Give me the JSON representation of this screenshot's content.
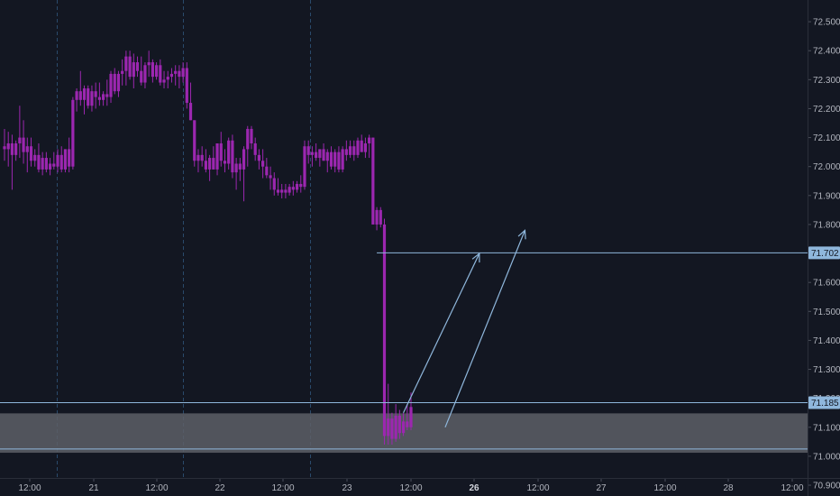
{
  "chart_data": {
    "type": "candlestick",
    "colors": {
      "background": "#131722",
      "candle": "#9c27b0",
      "drawing": "#8fb7dc",
      "zone_fill": "#5d5f66",
      "axis_text": "#b2b5be",
      "grid_vertical": "#2a4a6b"
    },
    "y_axis": {
      "position": "right",
      "ylim": [
        70.925,
        72.575
      ],
      "ticks": [
        "72.500",
        "72.400",
        "72.300",
        "72.200",
        "72.100",
        "72.000",
        "71.900",
        "71.800",
        "71.700",
        "71.600",
        "71.500",
        "71.400",
        "71.300",
        "71.200",
        "71.100",
        "71.000",
        "70.900"
      ]
    },
    "x_axis": {
      "ticks": [
        {
          "label": "12:00",
          "bold": false
        },
        {
          "label": "21",
          "bold": false
        },
        {
          "label": "12:00",
          "bold": false
        },
        {
          "label": "22",
          "bold": false
        },
        {
          "label": "12:00",
          "bold": false
        },
        {
          "label": "23",
          "bold": false
        },
        {
          "label": "12:00",
          "bold": false
        },
        {
          "label": "26",
          "bold": true
        },
        {
          "label": "12:00",
          "bold": false
        },
        {
          "label": "27",
          "bold": false
        },
        {
          "label": "12:00",
          "bold": false
        },
        {
          "label": "28",
          "bold": false
        },
        {
          "label": "12:00",
          "bold": false
        }
      ],
      "day_separators": 3
    },
    "price_labels": [
      {
        "text": "71.702",
        "value": 71.702
      },
      {
        "text": "71.185",
        "value": 71.185
      }
    ],
    "horizontal_levels": [
      {
        "name": "target-line",
        "value": 71.702,
        "starts_at_candle": 98
      },
      {
        "name": "resistance-line",
        "value": 71.185
      },
      {
        "name": "support-line",
        "value": 71.025
      }
    ],
    "zone": {
      "top": 71.148,
      "bottom": 71.012
    },
    "arrows": [
      {
        "name": "projection-arrow-1",
        "from_candle": 105,
        "from_value": 71.15,
        "to_candle": 125,
        "to_value": 71.7
      },
      {
        "name": "projection-arrow-2",
        "from_candle": 116,
        "from_value": 71.1,
        "to_candle": 137,
        "to_value": 71.78
      }
    ],
    "candles": [
      [
        72.07,
        72.13,
        72.02,
        72.06
      ],
      [
        72.06,
        72.12,
        72.0,
        72.08
      ],
      [
        72.08,
        72.11,
        71.92,
        72.04
      ],
      [
        72.04,
        72.09,
        72.02,
        72.08
      ],
      [
        72.08,
        72.21,
        72.03,
        72.1
      ],
      [
        72.1,
        72.16,
        72.01,
        72.05
      ],
      [
        72.05,
        72.1,
        71.98,
        72.07
      ],
      [
        72.07,
        72.1,
        72.0,
        72.02
      ],
      [
        72.02,
        72.06,
        72.0,
        72.04
      ],
      [
        72.04,
        72.08,
        71.98,
        71.99
      ],
      [
        71.99,
        72.05,
        71.97,
        72.03
      ],
      [
        72.03,
        72.05,
        71.98,
        71.99
      ],
      [
        71.99,
        72.03,
        71.97,
        72.01
      ],
      [
        72.01,
        72.05,
        71.99,
        72.0
      ],
      [
        72.0,
        72.06,
        71.98,
        72.04
      ],
      [
        72.04,
        72.07,
        71.98,
        71.99
      ],
      [
        71.99,
        72.06,
        71.98,
        72.06
      ],
      [
        72.06,
        72.1,
        71.98,
        72.0
      ],
      [
        72.0,
        72.24,
        71.99,
        72.23
      ],
      [
        72.23,
        72.27,
        72.19,
        72.26
      ],
      [
        72.26,
        72.33,
        72.21,
        72.23
      ],
      [
        72.23,
        72.28,
        72.18,
        72.27
      ],
      [
        72.27,
        72.28,
        72.2,
        72.21
      ],
      [
        72.21,
        72.28,
        72.19,
        72.26
      ],
      [
        72.26,
        72.29,
        72.2,
        72.24
      ],
      [
        72.24,
        72.29,
        72.21,
        72.23
      ],
      [
        72.23,
        72.26,
        72.21,
        72.25
      ],
      [
        72.25,
        72.3,
        72.21,
        72.24
      ],
      [
        72.24,
        72.33,
        72.22,
        72.32
      ],
      [
        72.32,
        72.34,
        72.25,
        72.26
      ],
      [
        72.26,
        72.33,
        72.24,
        72.32
      ],
      [
        72.32,
        72.37,
        72.28,
        72.33
      ],
      [
        72.33,
        72.4,
        72.28,
        72.38
      ],
      [
        72.38,
        72.4,
        72.3,
        72.31
      ],
      [
        72.31,
        72.39,
        72.27,
        72.36
      ],
      [
        72.36,
        72.38,
        72.31,
        72.33
      ],
      [
        72.33,
        72.38,
        72.28,
        72.29
      ],
      [
        72.29,
        72.36,
        72.27,
        72.35
      ],
      [
        72.35,
        72.4,
        72.31,
        72.36
      ],
      [
        72.36,
        72.37,
        72.29,
        72.31
      ],
      [
        72.31,
        72.36,
        72.3,
        72.35
      ],
      [
        72.35,
        72.37,
        72.28,
        72.29
      ],
      [
        72.29,
        72.33,
        72.27,
        72.3
      ],
      [
        72.3,
        72.33,
        72.27,
        72.31
      ],
      [
        72.31,
        72.34,
        72.29,
        72.32
      ],
      [
        72.32,
        72.35,
        72.28,
        72.33
      ],
      [
        72.33,
        72.35,
        72.27,
        72.31
      ],
      [
        72.31,
        72.36,
        72.29,
        72.34
      ],
      [
        72.34,
        72.36,
        72.2,
        72.22
      ],
      [
        72.22,
        72.29,
        72.16,
        72.16
      ],
      [
        72.16,
        72.16,
        72.0,
        72.02
      ],
      [
        72.02,
        72.06,
        71.98,
        72.04
      ],
      [
        72.04,
        72.07,
        72.0,
        72.02
      ],
      [
        72.02,
        72.06,
        71.98,
        71.99
      ],
      [
        71.99,
        72.04,
        71.95,
        72.03
      ],
      [
        72.03,
        72.07,
        71.99,
        71.99
      ],
      [
        71.99,
        72.08,
        71.97,
        72.08
      ],
      [
        72.08,
        72.12,
        72.0,
        72.02
      ],
      [
        72.02,
        72.06,
        71.98,
        72.01
      ],
      [
        72.01,
        72.1,
        71.99,
        72.09
      ],
      [
        72.09,
        72.11,
        71.96,
        71.98
      ],
      [
        71.98,
        72.03,
        71.92,
        72.01
      ],
      [
        72.01,
        72.03,
        71.95,
        71.99
      ],
      [
        71.99,
        72.07,
        71.88,
        72.06
      ],
      [
        72.06,
        72.14,
        72.0,
        72.13
      ],
      [
        72.13,
        72.14,
        72.06,
        72.08
      ],
      [
        72.08,
        72.1,
        72.02,
        72.04
      ],
      [
        72.04,
        72.06,
        71.99,
        72.02
      ],
      [
        72.02,
        72.06,
        71.96,
        72.0
      ],
      [
        72.0,
        72.03,
        71.96,
        71.97
      ],
      [
        71.97,
        72.0,
        71.92,
        71.96
      ],
      [
        71.96,
        71.98,
        71.9,
        71.92
      ],
      [
        71.92,
        71.96,
        71.9,
        71.91
      ],
      [
        71.91,
        71.94,
        71.89,
        71.92
      ],
      [
        71.92,
        71.94,
        71.89,
        71.91
      ],
      [
        71.91,
        71.94,
        71.9,
        71.93
      ],
      [
        71.93,
        71.95,
        71.9,
        71.92
      ],
      [
        71.92,
        71.95,
        71.91,
        71.94
      ],
      [
        71.94,
        71.97,
        71.91,
        71.93
      ],
      [
        71.93,
        72.09,
        71.92,
        72.07
      ],
      [
        72.07,
        72.09,
        72.01,
        72.04
      ],
      [
        72.04,
        72.07,
        72.0,
        72.05
      ],
      [
        72.05,
        72.08,
        72.02,
        72.03
      ],
      [
        72.03,
        72.06,
        72.0,
        72.06
      ],
      [
        72.06,
        72.08,
        72.02,
        72.02
      ],
      [
        72.02,
        72.06,
        71.98,
        72.05
      ],
      [
        72.05,
        72.07,
        71.99,
        72.0
      ],
      [
        72.0,
        72.06,
        71.98,
        72.05
      ],
      [
        72.05,
        72.07,
        71.98,
        71.99
      ],
      [
        71.99,
        72.07,
        71.98,
        72.06
      ],
      [
        72.06,
        72.09,
        72.02,
        72.04
      ],
      [
        72.04,
        72.09,
        72.03,
        72.07
      ],
      [
        72.07,
        72.09,
        72.02,
        72.04
      ],
      [
        72.04,
        72.1,
        72.03,
        72.09
      ],
      [
        72.09,
        72.11,
        72.05,
        72.05
      ],
      [
        72.05,
        72.1,
        72.03,
        72.08
      ],
      [
        72.08,
        72.11,
        72.03,
        72.1
      ],
      [
        72.1,
        72.1,
        71.8,
        71.8
      ],
      [
        71.8,
        71.86,
        71.78,
        71.85
      ],
      [
        71.85,
        71.86,
        71.79,
        71.8
      ],
      [
        71.8,
        71.82,
        71.04,
        71.07
      ],
      [
        71.07,
        71.25,
        71.04,
        71.13
      ],
      [
        71.13,
        71.15,
        71.04,
        71.06
      ],
      [
        71.06,
        71.18,
        71.05,
        71.14
      ],
      [
        71.14,
        71.16,
        71.06,
        71.08
      ],
      [
        71.08,
        71.15,
        71.07,
        71.12
      ],
      [
        71.12,
        71.18,
        71.09,
        71.1
      ],
      [
        71.1,
        71.22,
        71.09,
        71.17
      ]
    ]
  }
}
